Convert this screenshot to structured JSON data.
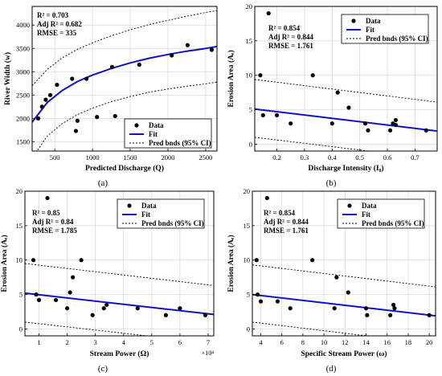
{
  "chart_data": [
    {
      "type": "scatter",
      "panel_label": "(a)",
      "xlabel": "Predicted Discharge (Q)",
      "ylabel": "River Width (w)",
      "xlim": [
        200,
        2650
      ],
      "ylim": [
        1300,
        4400
      ],
      "xticks": [
        500,
        1000,
        1500,
        2000,
        2500
      ],
      "yticks": [
        1500,
        2000,
        2500,
        3000,
        3500,
        4000
      ],
      "stats": [
        "R² = 0.703",
        "Adj R² = 0.682",
        "RMSE = 335"
      ],
      "legend": {
        "position": "bottom-right",
        "entries": [
          "Data",
          "Fit",
          "Pred bnds (95% CI)"
        ]
      },
      "points": {
        "x": [
          280,
          330,
          380,
          440,
          530,
          730,
          780,
          800,
          920,
          1060,
          1260,
          1300,
          1620,
          2050,
          2260,
          2580
        ],
        "y": [
          2000,
          2250,
          2400,
          2500,
          2720,
          2850,
          1730,
          1950,
          2850,
          2030,
          3100,
          2050,
          3150,
          3350,
          3570,
          3470
        ]
      },
      "fit": {
        "x": [
          200,
          400,
          600,
          800,
          1000,
          1250,
          1500,
          1750,
          2000,
          2250,
          2500,
          2650
        ],
        "y": [
          1920,
          2340,
          2600,
          2790,
          2930,
          3070,
          3190,
          3290,
          3370,
          3440,
          3500,
          3540
        ]
      },
      "upper": {
        "x": [
          200,
          400,
          600,
          800,
          1000,
          1250,
          1500,
          1750,
          2000,
          2250,
          2500,
          2650
        ],
        "y": [
          2700,
          3050,
          3300,
          3480,
          3620,
          3770,
          3900,
          4010,
          4100,
          4190,
          4270,
          4310
        ]
      },
      "lower": {
        "x": [
          200,
          400,
          600,
          800,
          1000,
          1250,
          1500,
          1750,
          2000,
          2250,
          2500,
          2650
        ],
        "y": [
          1150,
          1620,
          1890,
          2080,
          2220,
          2360,
          2470,
          2560,
          2630,
          2690,
          2740,
          2780
        ]
      }
    },
    {
      "type": "scatter",
      "panel_label": "(b)",
      "xlabel": "Discharge Intensity  (I₀)",
      "ylabel": "Erosion Area (Aₑ)",
      "xlim": [
        0.12,
        0.78
      ],
      "ylim": [
        -1,
        20
      ],
      "xticks": [
        0.2,
        0.3,
        0.4,
        0.5,
        0.6,
        0.7
      ],
      "yticks": [
        0,
        5,
        10,
        15,
        20
      ],
      "stats": [
        "R² = 0.854",
        "Adj R² = 0.844",
        "RMSE = 1.761"
      ],
      "legend": {
        "position": "top-right",
        "entries": [
          "Data",
          "Fit",
          "Pred bnds (95% CI)"
        ]
      },
      "points": {
        "x": [
          0.14,
          0.15,
          0.17,
          0.2,
          0.25,
          0.33,
          0.4,
          0.42,
          0.46,
          0.52,
          0.53,
          0.61,
          0.62,
          0.63,
          0.63,
          0.74
        ],
        "y": [
          10.0,
          4.2,
          19.0,
          4.2,
          3.0,
          10.0,
          3.0,
          7.5,
          5.3,
          3.0,
          2.0,
          2.0,
          3.0,
          3.5,
          2.8,
          2.0
        ]
      },
      "fit": {
        "x": [
          0.12,
          0.78
        ],
        "y": [
          5.1,
          1.9
        ]
      },
      "upper": {
        "x": [
          0.12,
          0.78
        ],
        "y": [
          9.4,
          6.1
        ]
      },
      "lower": {
        "x": [
          0.12,
          0.78
        ],
        "y": [
          1.0,
          -2.2
        ]
      }
    },
    {
      "type": "scatter",
      "panel_label": "(c)",
      "xlabel": "Stream Power  (Ω)",
      "ylabel": "Erosion Area (Aₑ)",
      "x_multiplier": "×10⁴",
      "xlim": [
        0.5,
        7.2
      ],
      "ylim": [
        -1,
        20
      ],
      "xticks": [
        1,
        2,
        3,
        4,
        5,
        6,
        7
      ],
      "yticks": [
        0,
        5,
        10,
        15,
        20
      ],
      "stats": [
        "R² = 0.85",
        "Adj R² = 0.84",
        "RMSE = 1.785"
      ],
      "legend": {
        "position": "top-right",
        "entries": [
          "Data",
          "Fit",
          "Pred bnds (95% CI)"
        ]
      },
      "points": {
        "x": [
          0.8,
          0.9,
          1.0,
          1.3,
          1.6,
          2.0,
          2.1,
          2.2,
          2.5,
          2.9,
          3.3,
          3.4,
          4.5,
          5.5,
          6.0,
          6.9
        ],
        "y": [
          10.0,
          5.0,
          4.2,
          19.0,
          4.2,
          3.0,
          5.3,
          7.5,
          10.0,
          2.0,
          3.0,
          3.5,
          3.0,
          2.0,
          3.0,
          2.0
        ]
      },
      "fit": {
        "x": [
          0.5,
          7.2
        ],
        "y": [
          5.2,
          2.1
        ]
      },
      "upper": {
        "x": [
          0.5,
          7.2
        ],
        "y": [
          9.5,
          6.3
        ]
      },
      "lower": {
        "x": [
          0.5,
          7.2
        ],
        "y": [
          1.0,
          -2.1
        ]
      }
    },
    {
      "type": "scatter",
      "panel_label": "(d)",
      "xlabel": "Specific Stream Power  (ω)",
      "ylabel": "Erosion Area (Aₑ)",
      "xlim": [
        3.2,
        20.6
      ],
      "ylim": [
        -1,
        20
      ],
      "xticks": [
        4,
        6,
        8,
        10,
        12,
        14,
        16,
        18,
        20
      ],
      "yticks": [
        0,
        5,
        10,
        15,
        20
      ],
      "stats": [
        "R² = 0.854",
        "Adj R² = 0.844",
        "RMSE = 1.761"
      ],
      "legend": {
        "position": "top-right",
        "entries": [
          "Data",
          "Fit",
          "Pred bnds (95% CI)"
        ]
      },
      "points": {
        "x": [
          3.6,
          3.7,
          4.0,
          4.6,
          5.6,
          6.8,
          8.9,
          11.0,
          11.2,
          12.3,
          14.0,
          14.1,
          16.3,
          16.6,
          16.7,
          20.0
        ],
        "y": [
          10.0,
          5.0,
          4.0,
          19.0,
          4.0,
          3.0,
          10.0,
          3.0,
          7.5,
          5.3,
          3.0,
          2.0,
          2.0,
          3.5,
          3.0,
          2.0
        ]
      },
      "fit": {
        "x": [
          3.2,
          20.6
        ],
        "y": [
          5.0,
          1.9
        ]
      },
      "upper": {
        "x": [
          3.2,
          20.6
        ],
        "y": [
          9.3,
          6.1
        ]
      },
      "lower": {
        "x": [
          3.2,
          20.6
        ],
        "y": [
          1.0,
          -2.2
        ]
      }
    }
  ]
}
